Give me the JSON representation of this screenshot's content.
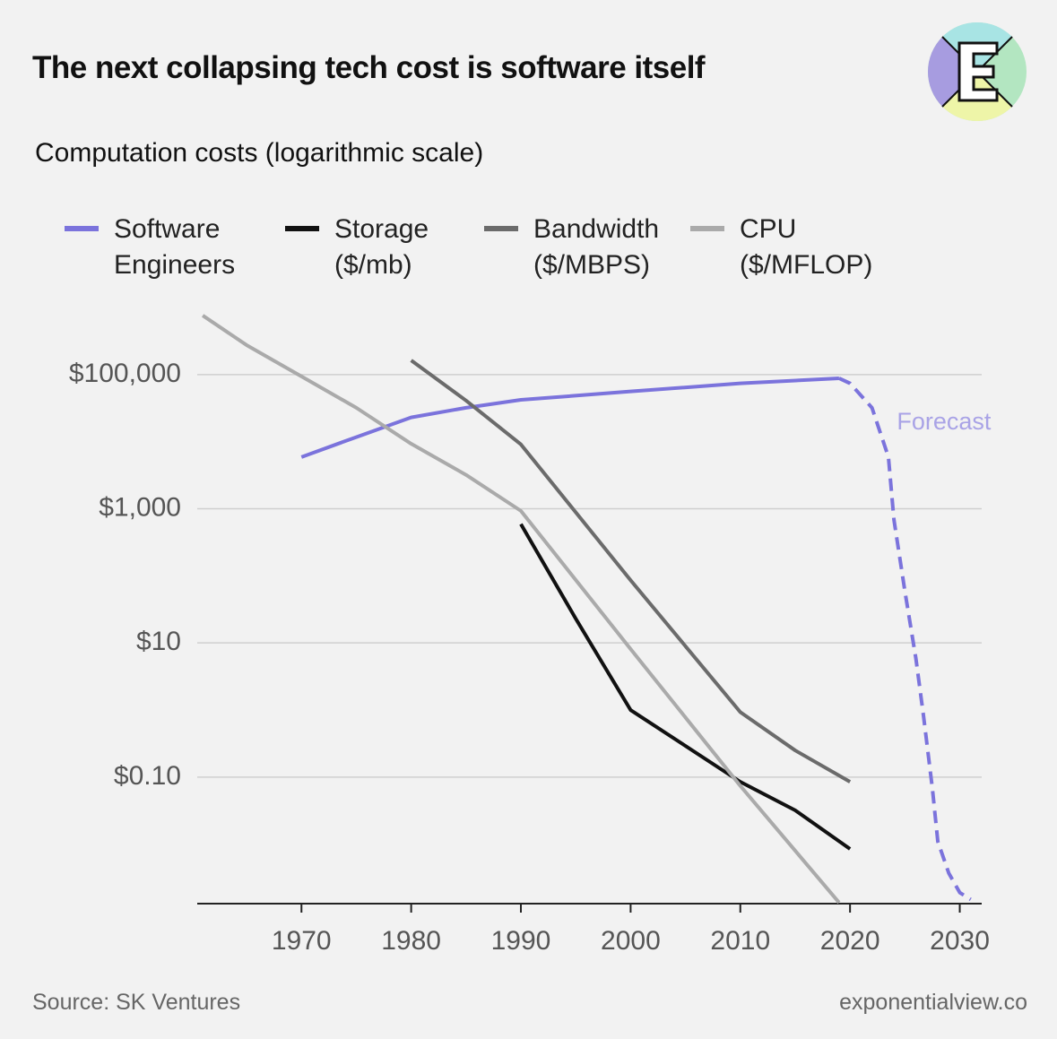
{
  "chart_data": {
    "type": "line",
    "title": "The next collapsing tech cost is software itself",
    "subtitle": "Computation costs (logarithmic scale)",
    "source": "Source: SK Ventures",
    "credit": "exponentialview.co",
    "log_scale_y": true,
    "grid": true,
    "xlim": [
      1960.5,
      2032
    ],
    "ylim": [
      0.0013,
      1000000
    ],
    "xticks": [
      1970,
      1980,
      1990,
      2000,
      2010,
      2020,
      2030
    ],
    "yticks": [
      {
        "value": 100000,
        "label": "$100,000"
      },
      {
        "value": 1000,
        "label": "$1,000"
      },
      {
        "value": 10,
        "label": "$10"
      },
      {
        "value": 0.1,
        "label": "$0.10"
      }
    ],
    "series": [
      {
        "name": "Software Engineers",
        "color": "#7b73dc",
        "x": [
          1970,
          1975,
          1980,
          1985,
          1990,
          2000,
          2010,
          2019
        ],
        "values": [
          5900,
          11700,
          23000,
          32000,
          42000,
          56000,
          74000,
          88000
        ]
      },
      {
        "name": "Storage ($/mb)",
        "color": "#111111",
        "x": [
          1990,
          1995,
          2000,
          2010,
          2015,
          2020
        ],
        "values": [
          590,
          23,
          1.0,
          0.085,
          0.032,
          0.0085
        ]
      },
      {
        "name": "Bandwidth ($/MBPS)",
        "color": "#6b6b6b",
        "x": [
          1980,
          1985,
          1990,
          2000,
          2010,
          2015,
          2020
        ],
        "values": [
          163000,
          41000,
          9100,
          86,
          0.93,
          0.25,
          0.085
        ]
      },
      {
        "name": "CPU ($/MFLOP)",
        "color": "#aaaaaa",
        "x": [
          1961,
          1965,
          1970,
          1975,
          1980,
          1985,
          1990,
          2000,
          2010,
          2019
        ],
        "values": [
          760000,
          275000,
          94000,
          32000,
          9300,
          3200,
          930,
          8.1,
          0.074,
          0.00135
        ]
      },
      {
        "name": "Forecast",
        "color": "#7b73dc",
        "label_color": "#a9a3e6",
        "dashed": true,
        "x": [
          2019,
          2020,
          2022,
          2023.5,
          2024,
          2025,
          2026,
          2026.7,
          2027.5,
          2028,
          2029,
          2030,
          2031
        ],
        "values": [
          88000,
          74000,
          32000,
          5900,
          690,
          59,
          5.9,
          0.81,
          0.069,
          0.011,
          0.0037,
          0.0019,
          0.0015
        ]
      }
    ]
  }
}
